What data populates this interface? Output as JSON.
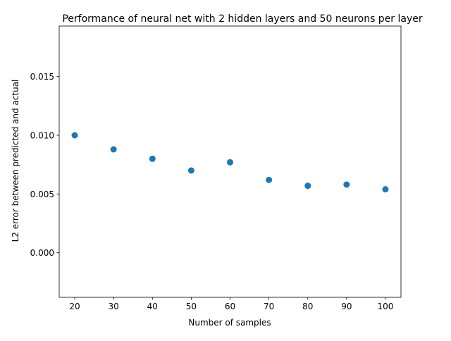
{
  "chart_data": {
    "type": "scatter",
    "title": "Performance of neural net with 2 hidden layers and 50 neurons per layer",
    "xlabel": "Number of samples",
    "ylabel": "L2 error between predicted and actual",
    "x": [
      20,
      30,
      40,
      50,
      60,
      70,
      80,
      90,
      100
    ],
    "y": [
      0.01,
      0.0088,
      0.008,
      0.007,
      0.0077,
      0.0062,
      0.0057,
      0.0058,
      0.0054
    ],
    "xlim": [
      16,
      104
    ],
    "ylim": [
      -0.0038,
      0.0193
    ],
    "xticks": [
      20,
      30,
      40,
      50,
      60,
      70,
      80,
      90,
      100
    ],
    "xtick_labels": [
      "20",
      "30",
      "40",
      "50",
      "60",
      "70",
      "80",
      "90",
      "100"
    ],
    "yticks": [
      0.0,
      0.005,
      0.01,
      0.015
    ],
    "ytick_labels": [
      "0.000",
      "0.005",
      "0.010",
      "0.015"
    ],
    "marker_color": "#1f77b4",
    "grid": false,
    "legend": "none"
  }
}
